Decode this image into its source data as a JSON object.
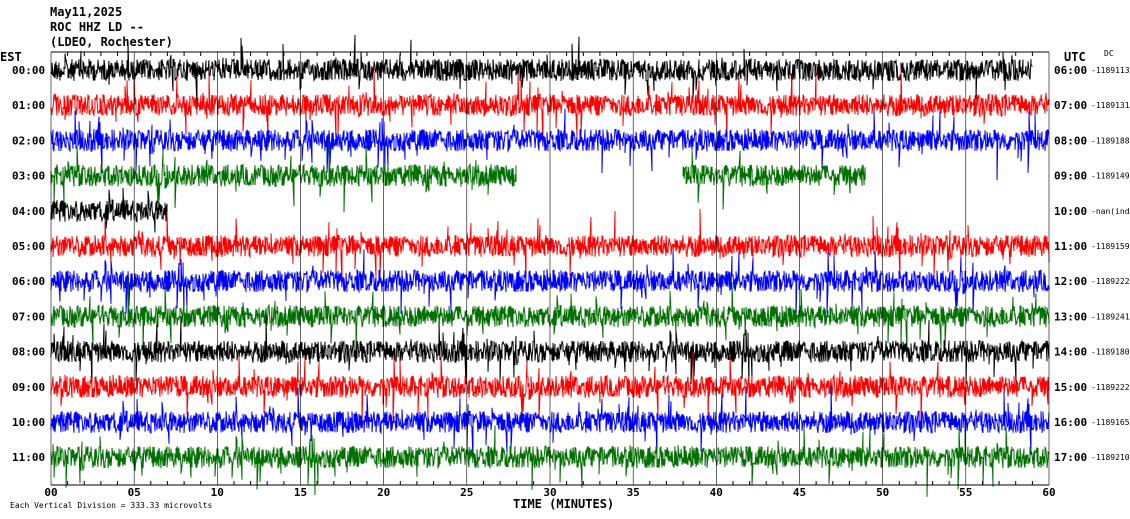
{
  "header": {
    "date": "May11,2025",
    "station": "ROC HHZ LD --",
    "location": "(LDEO, Rochester)",
    "left_zone": "EST",
    "right_zone": "UTC",
    "mode": "DC"
  },
  "footer": {
    "scale_note": "Each Vertical Division = 333.33 microvolts",
    "xlabel": "TIME (MINUTES)"
  },
  "colors": {
    "black": "#000000",
    "red": "#ff0000",
    "blue": "#0000ff",
    "green": "#007000",
    "grid": "#000000"
  },
  "chart_data": {
    "type": "line",
    "title": "",
    "xlabel": "TIME (MINUTES)",
    "xlim": [
      0,
      60
    ],
    "x_ticks": [
      "00",
      "05",
      "10",
      "15",
      "20",
      "25",
      "30",
      "35",
      "40",
      "45",
      "50",
      "55",
      "60"
    ],
    "grid": true,
    "rows": [
      {
        "est": "00:00",
        "utc": "06:00",
        "count": "-1189113",
        "color": "black",
        "segments": [
          [
            0,
            59
          ]
        ]
      },
      {
        "est": "01:00",
        "utc": "07:00",
        "count": "-1189131",
        "color": "red",
        "segments": [
          [
            0,
            60
          ]
        ]
      },
      {
        "est": "02:00",
        "utc": "08:00",
        "count": "-1189188",
        "color": "blue",
        "segments": [
          [
            0,
            60
          ]
        ]
      },
      {
        "est": "03:00",
        "utc": "09:00",
        "count": "-1189149",
        "color": "green",
        "segments": [
          [
            0,
            28
          ],
          [
            38,
            49
          ]
        ]
      },
      {
        "est": "04:00",
        "utc": "10:00",
        "count": "-nan(ind)",
        "color": "black",
        "segments": [
          [
            0,
            7
          ]
        ]
      },
      {
        "est": "05:00",
        "utc": "11:00",
        "count": "-1189159",
        "color": "red",
        "segments": [
          [
            0,
            60
          ]
        ]
      },
      {
        "est": "06:00",
        "utc": "12:00",
        "count": "-1189222",
        "color": "blue",
        "segments": [
          [
            0,
            60
          ]
        ]
      },
      {
        "est": "07:00",
        "utc": "13:00",
        "count": "-1189241",
        "color": "green",
        "segments": [
          [
            0,
            60
          ]
        ]
      },
      {
        "est": "08:00",
        "utc": "14:00",
        "count": "-1189180",
        "color": "black",
        "segments": [
          [
            0,
            60
          ]
        ]
      },
      {
        "est": "09:00",
        "utc": "15:00",
        "count": "-1189222",
        "color": "red",
        "segments": [
          [
            0,
            60
          ]
        ]
      },
      {
        "est": "10:00",
        "utc": "16:00",
        "count": "-1189165",
        "color": "blue",
        "segments": [
          [
            0,
            60
          ]
        ]
      },
      {
        "est": "11:00",
        "utc": "17:00",
        "count": "-1189210",
        "color": "green",
        "segments": [
          [
            0,
            60
          ]
        ]
      }
    ]
  }
}
